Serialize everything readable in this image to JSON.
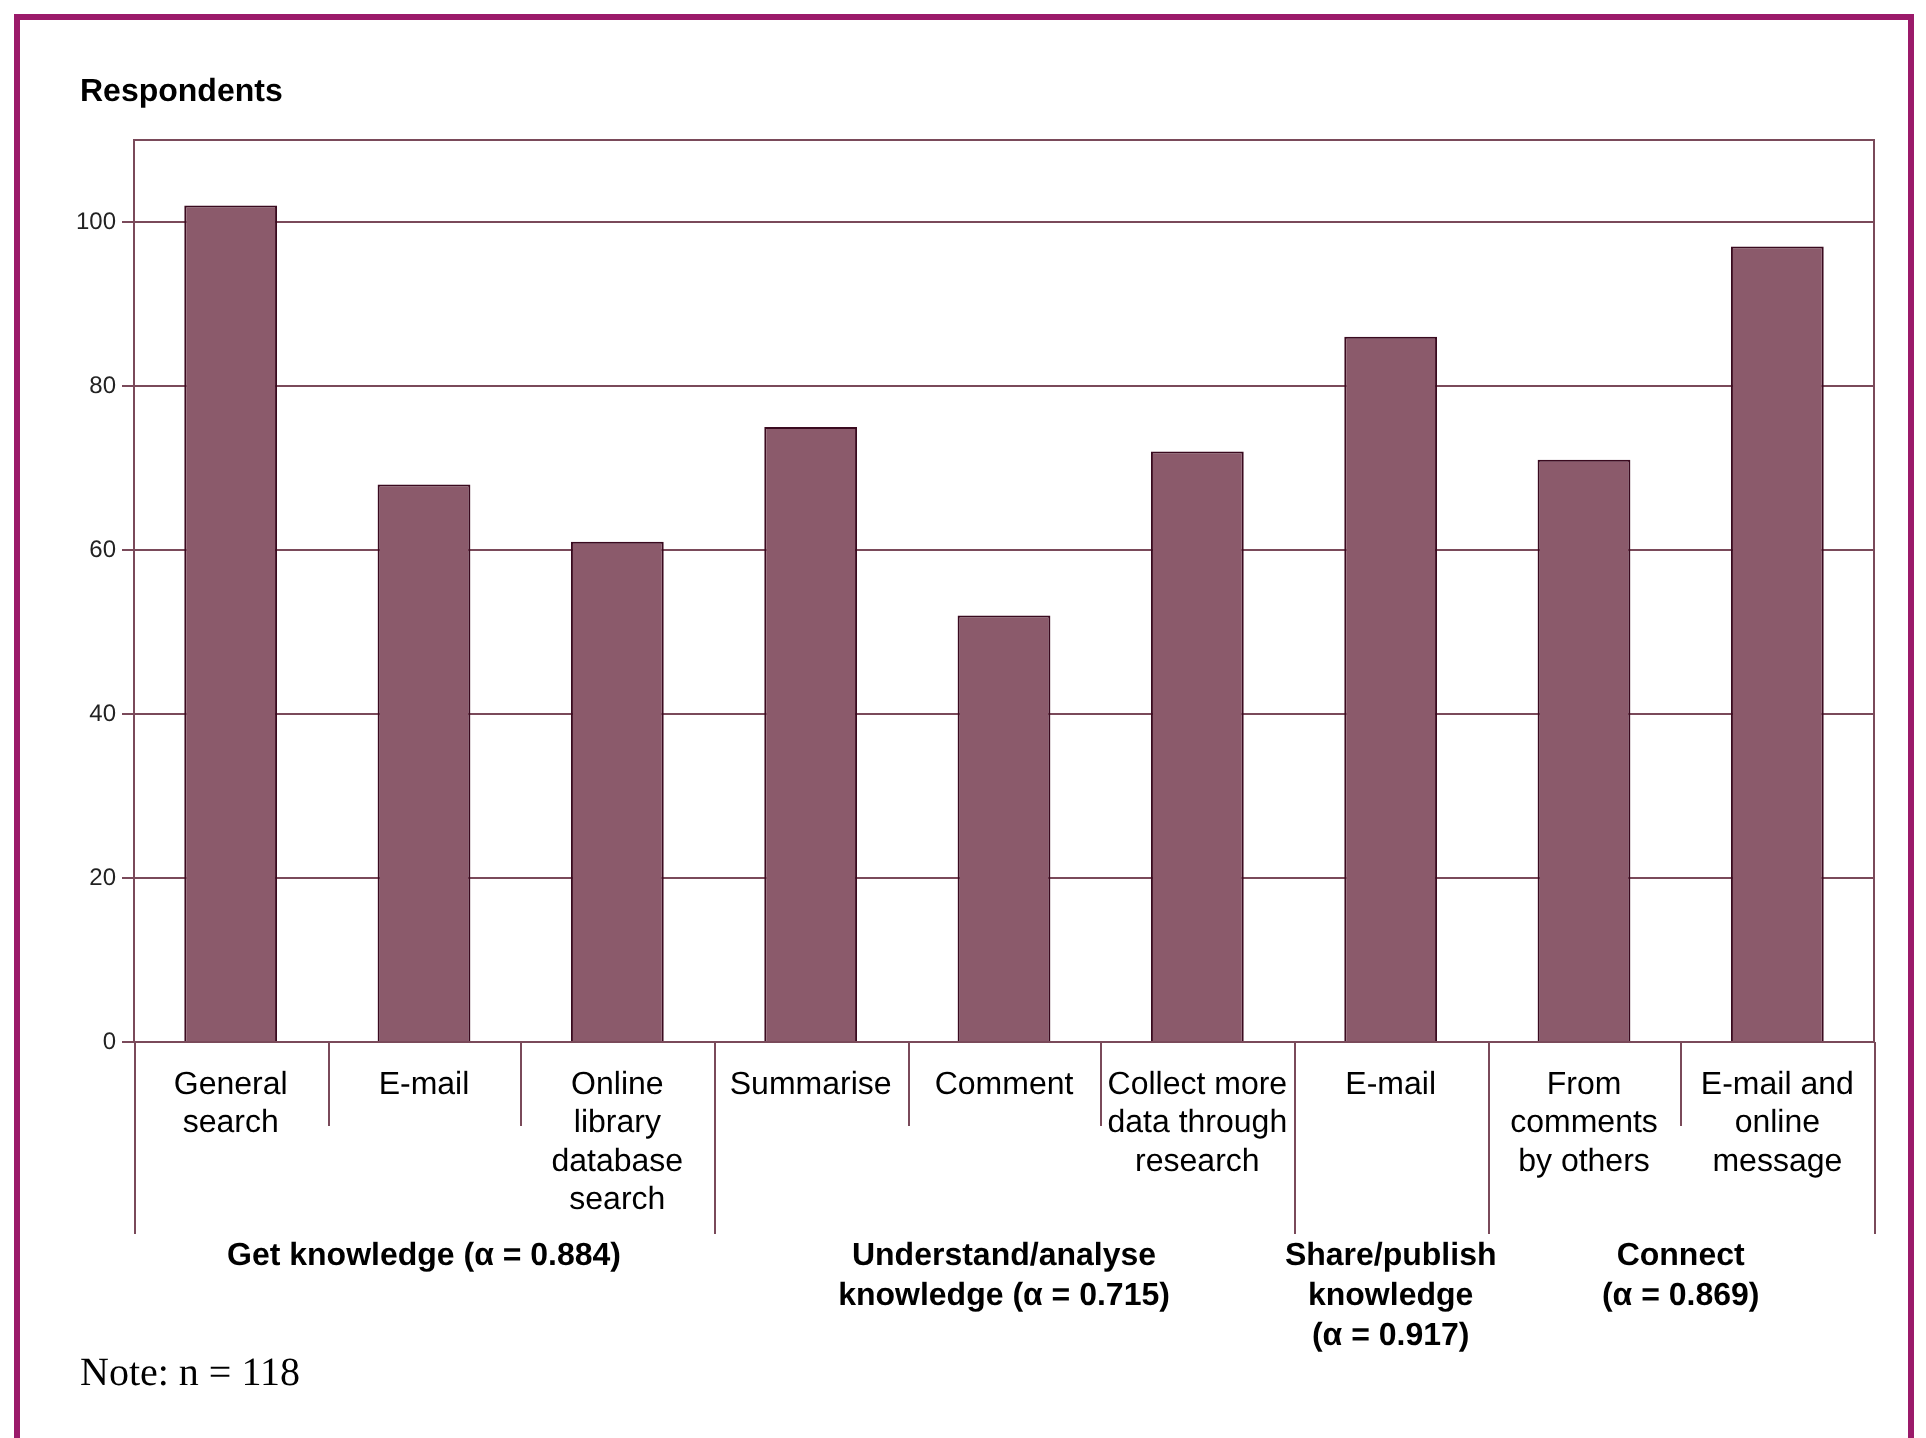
{
  "chart_data": {
    "type": "bar",
    "ylabel": "Respondents",
    "categories": [
      "General\nsearch",
      "E-mail",
      "Online\nlibrary\ndatabase\nsearch",
      "Summarise",
      "Comment",
      "Collect more\ndata through\nresearch",
      "E-mail",
      "From\ncomments\nby others",
      "E-mail and\nonline\nmessage"
    ],
    "values": [
      102,
      68,
      61,
      75,
      52,
      72,
      86,
      71,
      97
    ],
    "color": "#8b5a6b",
    "ylim": [
      0,
      110
    ],
    "yticks": [
      0,
      20,
      40,
      60,
      80,
      100
    ],
    "grid": "y",
    "legend": false,
    "annotations": [
      "Get knowledge (α = 0.884)",
      "Understand/analyse\nknowledge (α = 0.715)",
      "Share/publish\nknowledge\n(α = 0.917)",
      "Connect\n(α = 0.869)",
      "Note: n = 118"
    ]
  }
}
